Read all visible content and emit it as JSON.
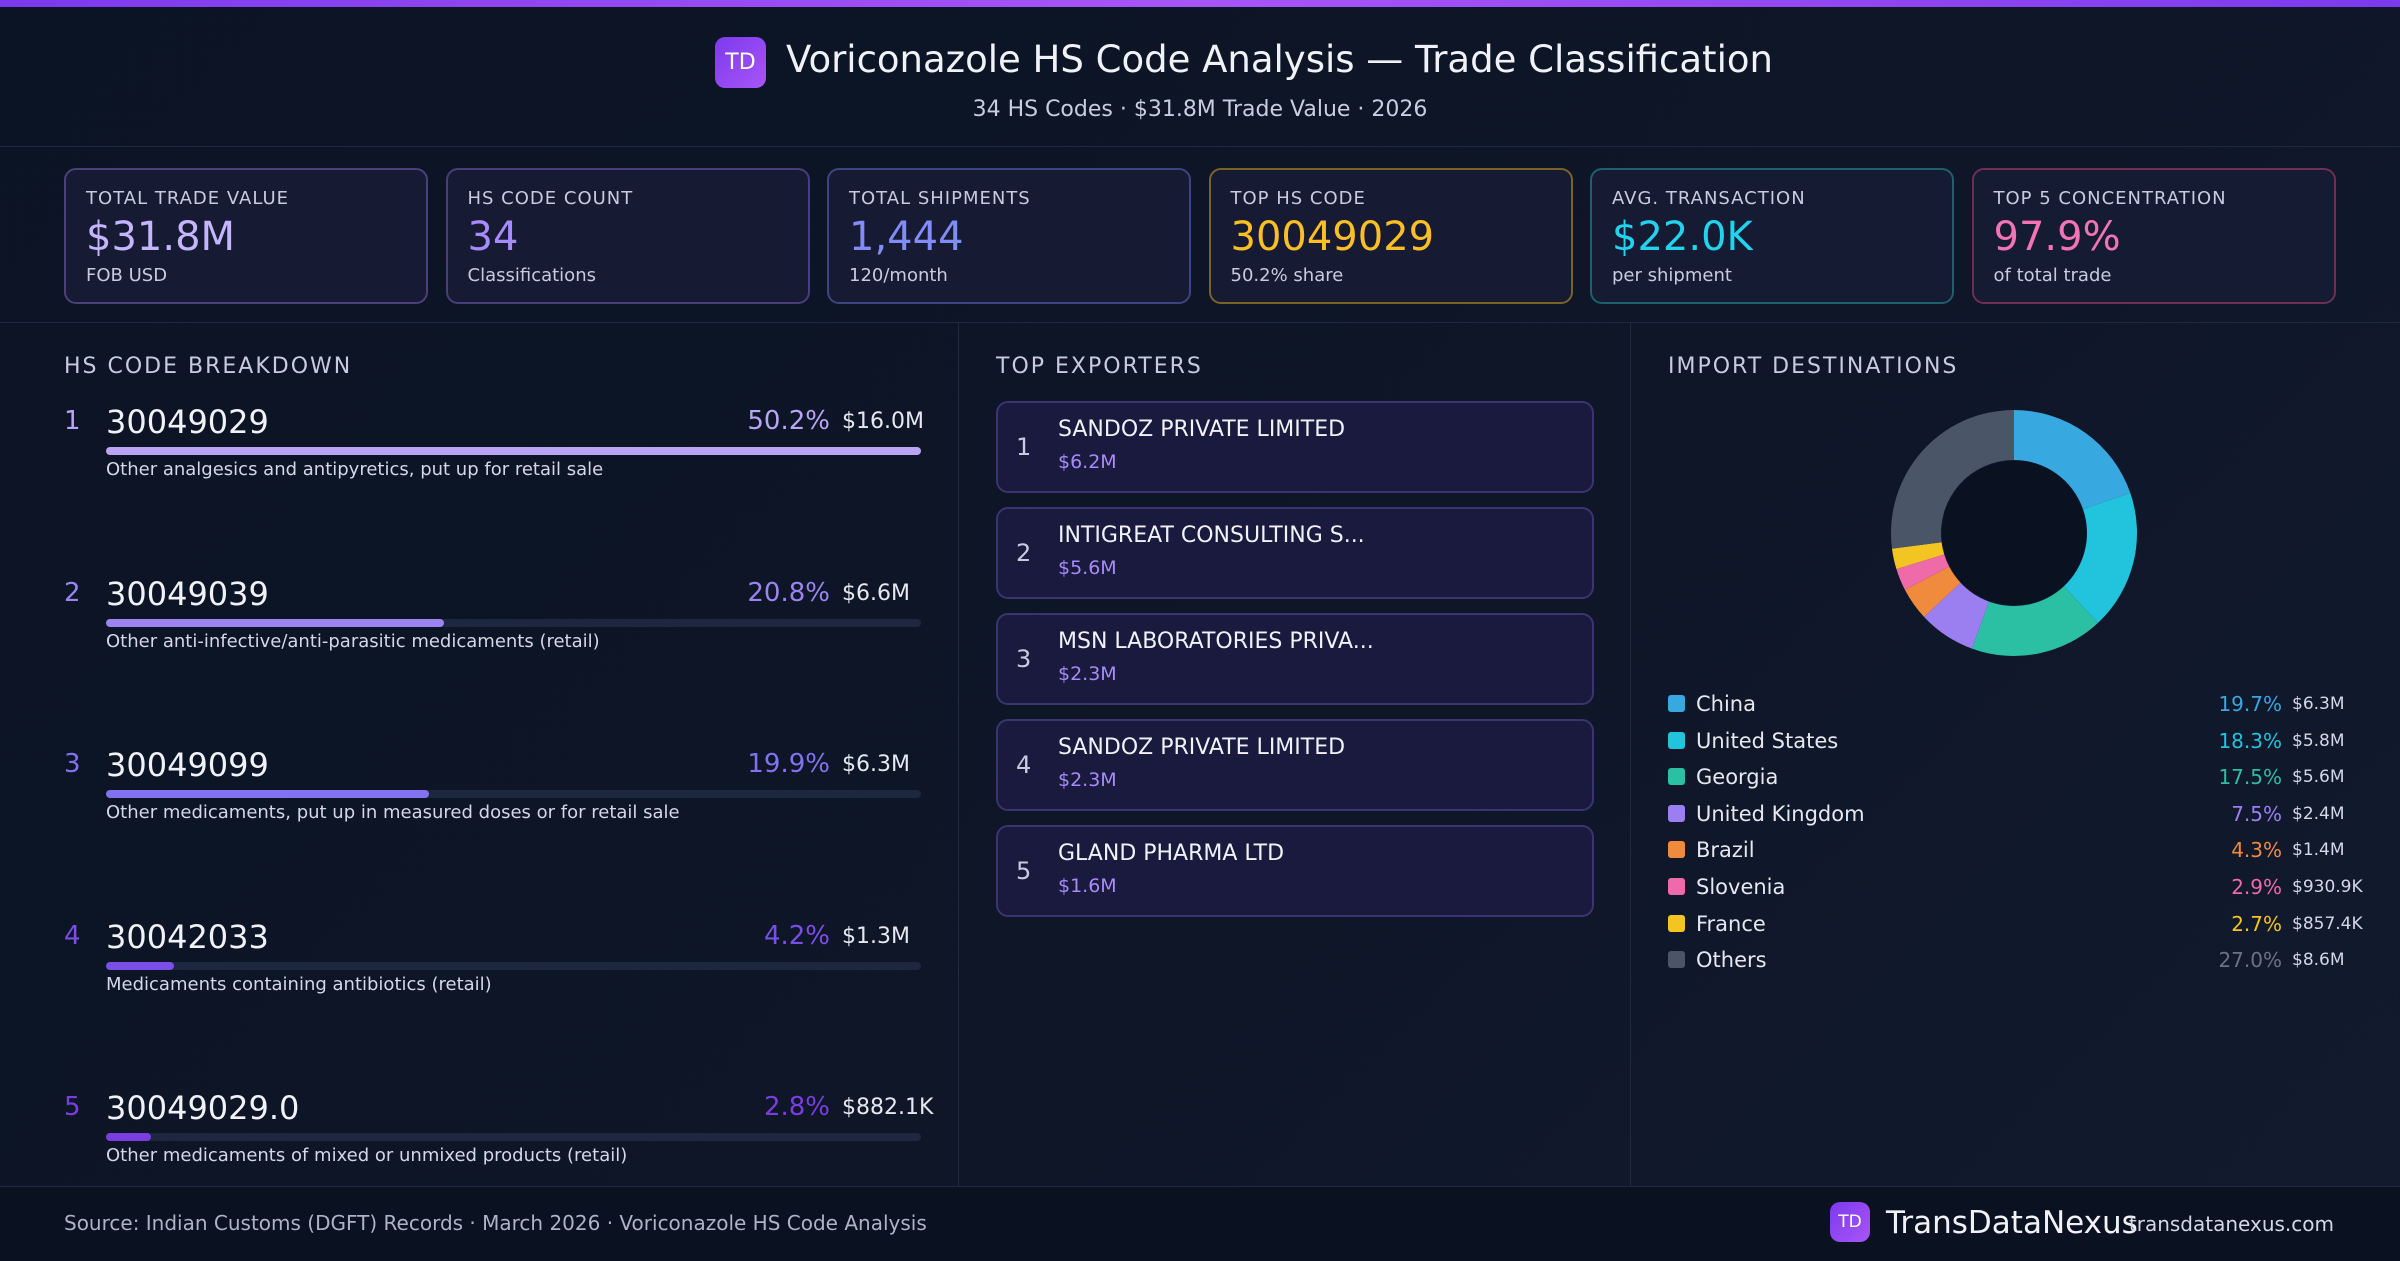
{
  "header": {
    "logo": "TD",
    "title": "Voriconazole HS Code Analysis — Trade Classification",
    "subtitle": "34 HS Codes · $31.8M Trade Value · 2026"
  },
  "kpis": [
    {
      "label": "TOTAL TRADE VALUE",
      "value": "$31.8M",
      "sub": "FOB USD",
      "color": "#c4b5fd",
      "border": "#4c3f7a"
    },
    {
      "label": "HS CODE COUNT",
      "value": "34",
      "sub": "Classifications",
      "color": "#a78bfa",
      "border": "#4a3d7e"
    },
    {
      "label": "TOTAL SHIPMENTS",
      "value": "1,444",
      "sub": "120/month",
      "color": "#818cf8",
      "border": "#3d4482"
    },
    {
      "label": "TOP HS CODE",
      "value": "30049029",
      "sub": "50.2% share",
      "color": "#fbbf24",
      "border": "#7a6424"
    },
    {
      "label": "AVG. TRANSACTION",
      "value": "$22.0K",
      "sub": "per shipment",
      "color": "#22d3ee",
      "border": "#1f5f6e"
    },
    {
      "label": "TOP 5 CONCENTRATION",
      "value": "97.9%",
      "sub": "of total trade",
      "color": "#f472b6",
      "border": "#6e2f55"
    }
  ],
  "hs_breakdown": {
    "title": "HS CODE BREAKDOWN",
    "items": [
      {
        "rank": "1",
        "code": "30049029",
        "share": 50.2,
        "share_label": "50.2%",
        "value": "$16.0M",
        "description": "Other analgesics and antipyretics, put up for retail sale",
        "color": "#b9a4f5"
      },
      {
        "rank": "2",
        "code": "30049039",
        "share": 20.8,
        "share_label": "20.8%",
        "value": "$6.6M",
        "description": "Other anti-infective/anti-parasitic medicaments (retail)",
        "color": "#9b84f0"
      },
      {
        "rank": "3",
        "code": "30049099",
        "share": 19.9,
        "share_label": "19.9%",
        "value": "$6.3M",
        "description": "Other medicaments, put up in measured doses or for retail sale",
        "color": "#8272ef"
      },
      {
        "rank": "4",
        "code": "30042033",
        "share": 4.2,
        "share_label": "4.2%",
        "value": "$1.3M",
        "description": "Medicaments containing antibiotics (retail)",
        "color": "#7c4ee8"
      },
      {
        "rank": "5",
        "code": "30049029.0",
        "share": 2.8,
        "share_label": "2.8%",
        "value": "$882.1K",
        "description": "Other medicaments of mixed or unmixed products (retail)",
        "color": "#7a3de0"
      }
    ]
  },
  "exporters": {
    "title": "TOP EXPORTERS",
    "items": [
      {
        "rank": "1",
        "name": "SANDOZ PRIVATE LIMITED",
        "value": "$6.2M"
      },
      {
        "rank": "2",
        "name": "INTIGREAT CONSULTING S...",
        "value": "$5.6M"
      },
      {
        "rank": "3",
        "name": "MSN LABORATORIES PRIVA...",
        "value": "$2.3M"
      },
      {
        "rank": "4",
        "name": "SANDOZ PRIVATE LIMITED",
        "value": "$2.3M"
      },
      {
        "rank": "5",
        "name": "GLAND PHARMA LTD",
        "value": "$1.6M"
      }
    ]
  },
  "chart_data": {
    "type": "pie",
    "title": "IMPORT DESTINATIONS",
    "categories": [
      "China",
      "United States",
      "Georgia",
      "United Kingdom",
      "Brazil",
      "Slovenia",
      "France",
      "Others"
    ],
    "values": [
      19.7,
      18.3,
      17.5,
      7.5,
      4.3,
      2.9,
      2.7,
      27.0
    ],
    "value_labels": [
      "19.7%",
      "18.3%",
      "17.5%",
      "7.5%",
      "4.3%",
      "2.9%",
      "2.7%",
      "27.0%"
    ],
    "trade_values": [
      "$6.3M",
      "$5.8M",
      "$5.6M",
      "$2.4M",
      "$1.4M",
      "$930.9K",
      "$857.4K",
      "$8.6M"
    ],
    "colors": [
      "#38a8e0",
      "#22c3dc",
      "#2bbfa4",
      "#9b7ff0",
      "#f08a3c",
      "#ee6aa8",
      "#f2c522",
      "#4a5568"
    ]
  },
  "footer": {
    "source": "Source: Indian Customs (DGFT) Records · March 2026 · Voriconazole HS Code Analysis",
    "logo": "TD",
    "brand": "TransDataNexus",
    "url": "transdatanexus.com"
  }
}
